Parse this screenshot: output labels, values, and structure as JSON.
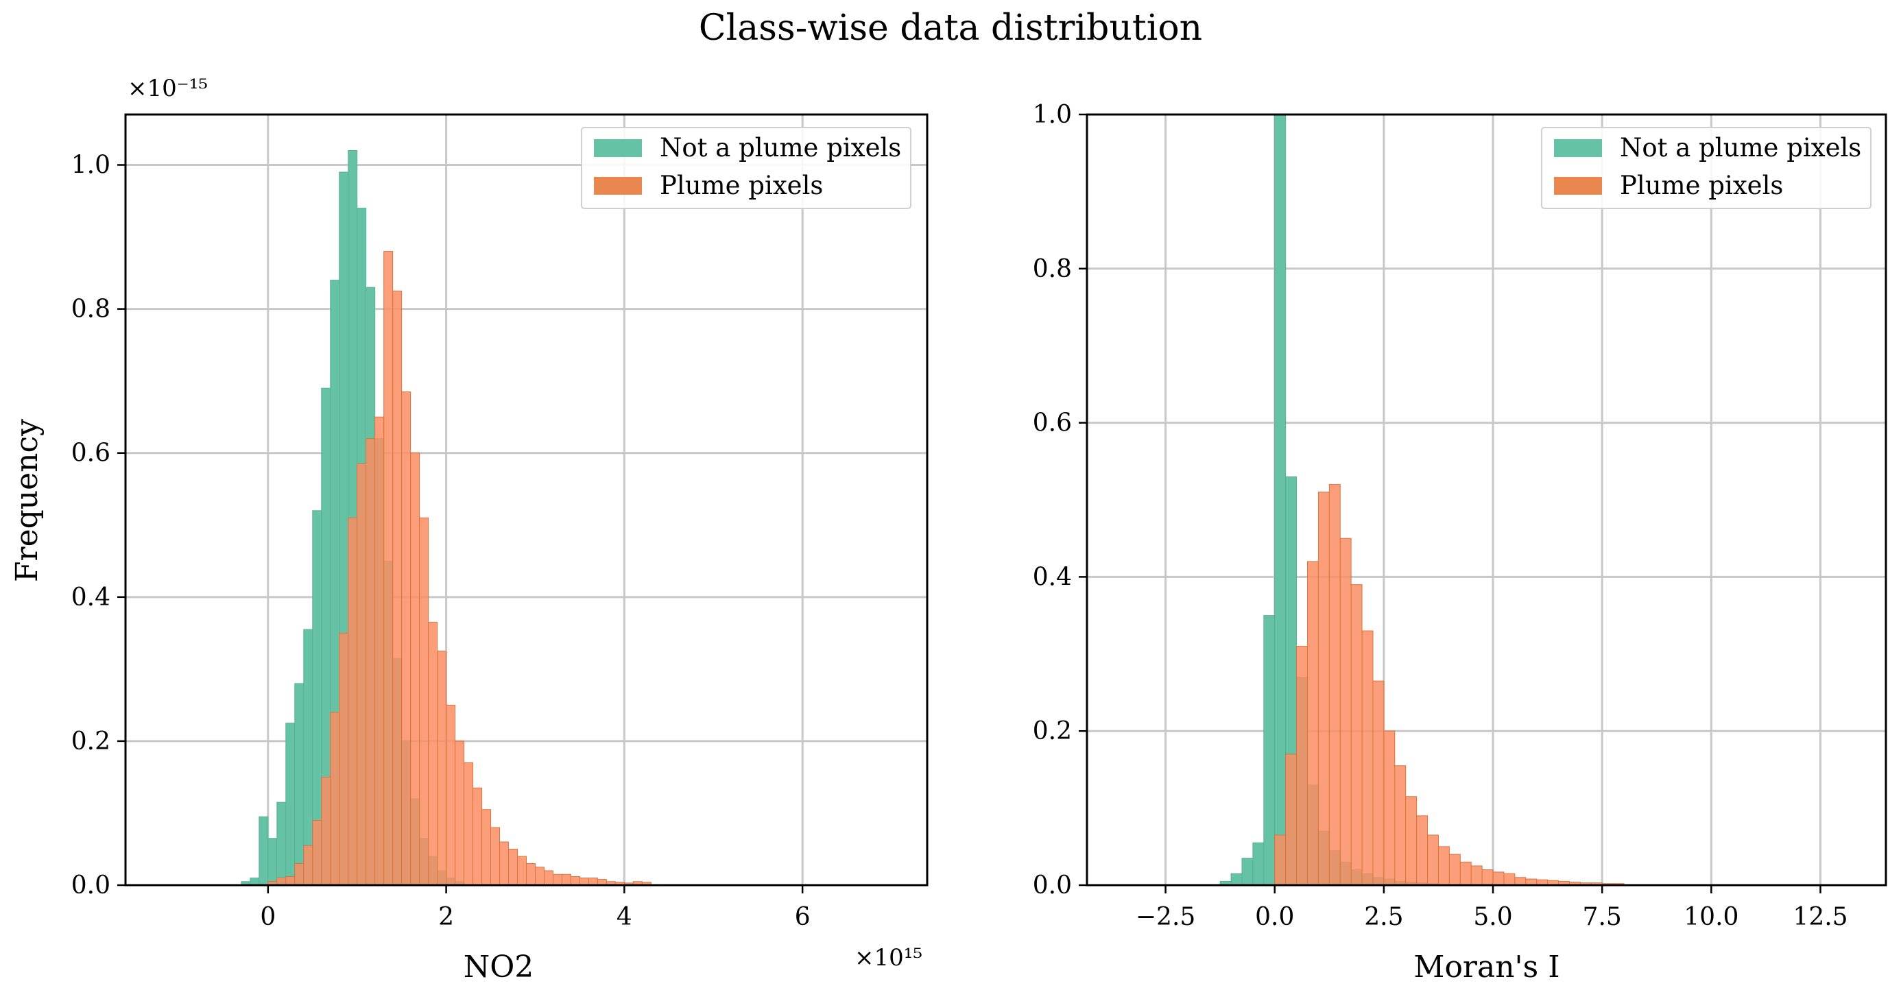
{
  "figure": {
    "suptitle": "Class-wise data distribution"
  },
  "colors": {
    "not_plume": "#66c2a5",
    "plume": "#fc8d62",
    "grid": "#c8c8c8",
    "frame": "#000000"
  },
  "chart_data": [
    {
      "type": "bar",
      "id": "no2",
      "title": "",
      "xlabel": "NO2",
      "ylabel": "Frequency",
      "x_offset_label": "×10¹⁵",
      "y_offset_label": "×10⁻¹⁵",
      "xlim": [
        -1.6,
        7.4
      ],
      "ylim": [
        0,
        1.07
      ],
      "xticks": [
        0,
        2,
        4,
        6
      ],
      "xtick_labels": [
        "0",
        "2",
        "4",
        "6"
      ],
      "yticks": [
        0.0,
        0.2,
        0.4,
        0.6,
        0.8,
        1.0
      ],
      "ytick_labels": [
        "0.0",
        "0.2",
        "0.4",
        "0.6",
        "0.8",
        "1.0"
      ],
      "grid": true,
      "legend": "top-right",
      "bin_width": 0.1,
      "series": [
        {
          "name": "Not a plume pixels",
          "bin_start": -0.3,
          "values": [
            0.005,
            0.01,
            0.095,
            0.065,
            0.115,
            0.225,
            0.28,
            0.355,
            0.52,
            0.69,
            0.84,
            0.99,
            1.02,
            0.94,
            0.83,
            0.62,
            0.45,
            0.315,
            0.2,
            0.12,
            0.065,
            0.04,
            0.02,
            0.01,
            0.005
          ]
        },
        {
          "name": "Plume pixels",
          "bin_start": 0.0,
          "values": [
            0.005,
            0.01,
            0.012,
            0.03,
            0.055,
            0.09,
            0.15,
            0.24,
            0.35,
            0.51,
            0.585,
            0.62,
            0.65,
            0.88,
            0.825,
            0.685,
            0.6,
            0.51,
            0.365,
            0.325,
            0.25,
            0.2,
            0.17,
            0.135,
            0.105,
            0.08,
            0.06,
            0.05,
            0.04,
            0.03,
            0.025,
            0.02,
            0.015,
            0.015,
            0.012,
            0.01,
            0.01,
            0.008,
            0.005,
            0.004,
            0.003,
            0.005,
            0.004
          ]
        }
      ]
    },
    {
      "type": "bar",
      "id": "morans_i",
      "title": "",
      "xlabel": "Moran's I",
      "ylabel": "",
      "xlim": [
        -4.3,
        14.0
      ],
      "ylim": [
        0,
        1.0
      ],
      "xticks": [
        -2.5,
        0.0,
        2.5,
        5.0,
        7.5,
        10.0,
        12.5
      ],
      "xtick_labels": [
        "−2.5",
        "0.0",
        "2.5",
        "5.0",
        "7.5",
        "10.0",
        "12.5"
      ],
      "yticks": [
        0.0,
        0.2,
        0.4,
        0.6,
        0.8,
        1.0
      ],
      "ytick_labels": [
        "0.0",
        "0.2",
        "0.4",
        "0.6",
        "0.8",
        "1.0"
      ],
      "grid": true,
      "legend": "top-right",
      "bin_width": 0.25,
      "series": [
        {
          "name": "Not a plume pixels",
          "bin_start": -1.25,
          "values": [
            0.005,
            0.015,
            0.035,
            0.055,
            0.35,
            1.0,
            0.53,
            0.27,
            0.13,
            0.07,
            0.045,
            0.03,
            0.02,
            0.015,
            0.01,
            0.008,
            0.005,
            0.004,
            0.003,
            0.002
          ]
        },
        {
          "name": "Plume pixels",
          "bin_start": 0.0,
          "values": [
            0.065,
            0.17,
            0.31,
            0.42,
            0.51,
            0.52,
            0.45,
            0.39,
            0.33,
            0.265,
            0.2,
            0.155,
            0.115,
            0.09,
            0.065,
            0.05,
            0.04,
            0.03,
            0.025,
            0.02,
            0.017,
            0.015,
            0.01,
            0.008,
            0.007,
            0.006,
            0.005,
            0.004,
            0.003,
            0.003,
            0.002,
            0.002
          ]
        }
      ]
    }
  ]
}
